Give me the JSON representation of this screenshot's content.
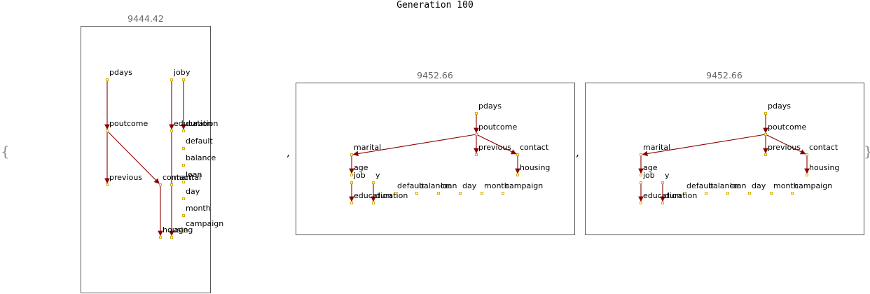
{
  "title": "Generation 100",
  "braces": {
    "open": "{",
    "close": "}"
  },
  "separator": ",",
  "colors": {
    "edge": "#8b0000",
    "node_fill": "#fffbe6",
    "node_stroke": "#d4b000",
    "frame": "#555555"
  },
  "networks": [
    {
      "score": "9444.42",
      "nodes": {
        "pdays": "pdays",
        "job": "job",
        "y": "y",
        "poutcome": "poutcome",
        "education": "education",
        "duration": "duration",
        "default": "default",
        "balance": "balance",
        "loan": "loan",
        "previous": "previous",
        "contact": "contact",
        "marital": "marital",
        "day": "day",
        "month": "month",
        "campaign": "campaign",
        "housing": "housing",
        "age": "age"
      },
      "edges": [
        [
          "pdays",
          "poutcome"
        ],
        [
          "poutcome",
          "previous"
        ],
        [
          "poutcome",
          "contact"
        ],
        [
          "job",
          "education"
        ],
        [
          "y",
          "duration"
        ],
        [
          "contact",
          "housing"
        ],
        [
          "education",
          "age"
        ]
      ]
    },
    {
      "score": "9452.66",
      "nodes": {
        "pdays": "pdays",
        "poutcome": "poutcome",
        "marital": "marital",
        "previous": "previous",
        "contact": "contact",
        "age": "age",
        "housing": "housing",
        "job": "job",
        "y": "y",
        "default": "default",
        "balance": "balance",
        "loan": "loan",
        "day": "day",
        "month": "month",
        "campaign": "campaign",
        "education": "education",
        "duration": "duration"
      },
      "edges": [
        [
          "pdays",
          "poutcome"
        ],
        [
          "poutcome",
          "marital"
        ],
        [
          "poutcome",
          "previous"
        ],
        [
          "poutcome",
          "contact"
        ],
        [
          "contact",
          "housing"
        ],
        [
          "marital",
          "age"
        ],
        [
          "job",
          "education"
        ],
        [
          "y",
          "duration"
        ]
      ]
    },
    {
      "score": "9452.66",
      "nodes": {
        "pdays": "pdays",
        "poutcome": "poutcome",
        "marital": "marital",
        "previous": "previous",
        "contact": "contact",
        "age": "age",
        "housing": "housing",
        "job": "job",
        "y": "y",
        "default": "default",
        "balance": "balance",
        "loan": "loan",
        "day": "day",
        "month": "month",
        "campaign": "campaign",
        "education": "education",
        "duration": "duration"
      },
      "edges": [
        [
          "pdays",
          "poutcome"
        ],
        [
          "poutcome",
          "marital"
        ],
        [
          "poutcome",
          "previous"
        ],
        [
          "poutcome",
          "contact"
        ],
        [
          "contact",
          "housing"
        ],
        [
          "marital",
          "age"
        ],
        [
          "job",
          "education"
        ],
        [
          "y",
          "duration"
        ]
      ]
    }
  ]
}
